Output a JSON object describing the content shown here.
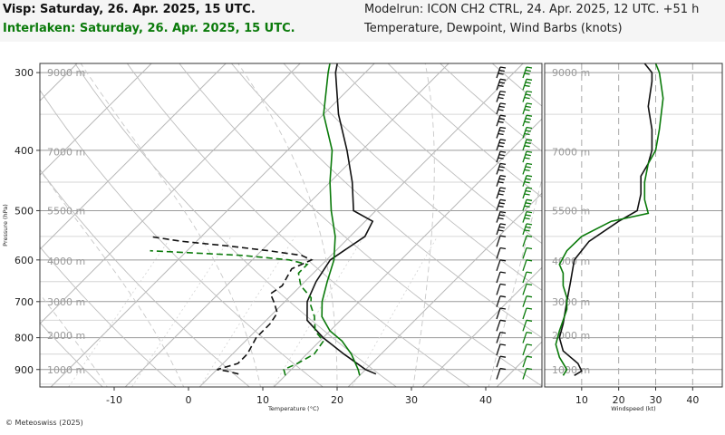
{
  "header": {
    "left_line1": "Visp: Saturday, 26. Apr. 2025, 15 UTC.",
    "left_line2": "Interlaken: Saturday, 26. Apr. 2025, 15 UTC.",
    "right_line1": "Modelrun: ICON CH2 CTRL, 24. Apr. 2025, 12 UTC. +51 h",
    "right_line2": "Temperature, Dewpoint, Wind Barbs (knots)"
  },
  "footer": {
    "copyright": "© Meteoswiss (2025)"
  },
  "colors": {
    "visp": "#111111",
    "interlaken": "#0a7a0a",
    "grid": "#bbbbbb",
    "header_bg": "#f5f5f5"
  },
  "chart_data": [
    {
      "type": "line",
      "subtype": "skew-t log-p diagram",
      "xlabel": "Temperature (°C)",
      "ylabel": "Pressure (hPa)",
      "x_ticks": [
        -10,
        0,
        10,
        20,
        30,
        40
      ],
      "y_ticks": [
        300,
        400,
        500,
        600,
        700,
        800,
        900
      ],
      "xlim": [
        -25,
        47
      ],
      "ylim": [
        960,
        290
      ],
      "y_scale": "log",
      "height_labels": [
        {
          "label": "9000 m",
          "pressure": 300
        },
        {
          "label": "7000 m",
          "pressure": 402
        },
        {
          "label": "5500 m",
          "pressure": 500
        },
        {
          "label": "4000 m",
          "pressure": 602
        },
        {
          "label": "3000 m",
          "pressure": 700
        },
        {
          "label": "2000 m",
          "pressure": 793
        },
        {
          "label": "1000 m",
          "pressure": 900
        }
      ],
      "series": [
        {
          "name": "Visp",
          "kind": "temperature",
          "color": "#111111",
          "style": "solid",
          "points": [
            [
              22,
              915
            ],
            [
              20,
              900
            ],
            [
              15,
              850
            ],
            [
              10,
              800
            ],
            [
              5.5,
              750
            ],
            [
              3,
              700
            ],
            [
              1.5,
              650
            ],
            [
              0.5,
              600
            ],
            [
              2,
              550
            ],
            [
              1,
              520
            ],
            [
              -3,
              500
            ],
            [
              -7,
              450
            ],
            [
              -12,
              400
            ],
            [
              -18,
              350
            ],
            [
              -24,
              300
            ],
            [
              -25,
              290
            ]
          ]
        },
        {
          "name": "Visp",
          "kind": "dewpoint",
          "color": "#111111",
          "style": "dashed",
          "points": [
            [
              3.5,
              915
            ],
            [
              1.5,
              905
            ],
            [
              0,
              900
            ],
            [
              2,
              880
            ],
            [
              2,
              850
            ],
            [
              1,
              800
            ],
            [
              1,
              760
            ],
            [
              0.5,
              730
            ],
            [
              -1.5,
              700
            ],
            [
              -3,
              680
            ],
            [
              -2.5,
              660
            ],
            [
              -3,
              640
            ],
            [
              -3.5,
              620
            ],
            [
              -2,
              600
            ],
            [
              -4,
              590
            ],
            [
              -9,
              580
            ],
            [
              -15,
              570
            ],
            [
              -22,
              560
            ],
            [
              -27,
              550
            ]
          ]
        },
        {
          "name": "Interlaken",
          "kind": "temperature",
          "color": "#0a7a0a",
          "style": "solid",
          "points": [
            [
              20,
              920
            ],
            [
              19,
              900
            ],
            [
              16,
              850
            ],
            [
              13,
              810
            ],
            [
              10,
              780
            ],
            [
              7,
              740
            ],
            [
              5,
              700
            ],
            [
              3,
              650
            ],
            [
              1,
              600
            ],
            [
              -2,
              550
            ],
            [
              -6,
              500
            ],
            [
              -10,
              450
            ],
            [
              -14,
              400
            ],
            [
              -20,
              350
            ],
            [
              -25,
              300
            ],
            [
              -26,
              290
            ]
          ]
        },
        {
          "name": "Interlaken",
          "kind": "dewpoint",
          "color": "#0a7a0a",
          "style": "dashed",
          "points": [
            [
              10,
              920
            ],
            [
              9,
              900
            ],
            [
              10,
              880
            ],
            [
              11,
              850
            ],
            [
              10.5,
              810
            ],
            [
              8,
              780
            ],
            [
              6,
              740
            ],
            [
              4,
              710
            ],
            [
              3,
              690
            ],
            [
              0,
              660
            ],
            [
              -2,
              630
            ],
            [
              -2,
              610
            ],
            [
              -5,
              600
            ],
            [
              -12,
              590
            ],
            [
              -25,
              580
            ]
          ]
        }
      ],
      "wind_barbs": [
        {
          "name": "Visp",
          "color": "#111111"
        },
        {
          "name": "Interlaken",
          "color": "#0a7a0a"
        }
      ]
    },
    {
      "type": "line",
      "xlabel": "Windspeed (kt)",
      "x_ticks": [
        10,
        20,
        30,
        40
      ],
      "xlim": [
        0,
        48
      ],
      "height_labels": [
        "9000 m",
        "7000 m",
        "5500 m",
        "4000 m",
        "3000 m",
        "2000 m",
        "1000 m"
      ],
      "series": [
        {
          "name": "Visp",
          "color": "#111111",
          "points": [
            [
              8,
              920
            ],
            [
              10,
              905
            ],
            [
              9,
              880
            ],
            [
              7,
              860
            ],
            [
              5,
              840
            ],
            [
              4,
              800
            ],
            [
              5,
              760
            ],
            [
              6,
              700
            ],
            [
              7,
              650
            ],
            [
              8,
              600
            ],
            [
              12,
              560
            ],
            [
              20,
              520
            ],
            [
              25,
              500
            ],
            [
              26,
              470
            ],
            [
              26,
              440
            ],
            [
              28,
              420
            ],
            [
              29,
              400
            ],
            [
              29,
              370
            ],
            [
              28,
              340
            ],
            [
              29,
              310
            ],
            [
              29,
              300
            ],
            [
              27,
              290
            ]
          ]
        },
        {
          "name": "Interlaken",
          "color": "#0a7a0a",
          "points": [
            [
              5,
              920
            ],
            [
              6,
              900
            ],
            [
              4,
              860
            ],
            [
              3,
              820
            ],
            [
              4,
              780
            ],
            [
              5,
              750
            ],
            [
              6,
              720
            ],
            [
              6,
              690
            ],
            [
              5,
              660
            ],
            [
              5,
              630
            ],
            [
              4,
              610
            ],
            [
              6,
              580
            ],
            [
              10,
              550
            ],
            [
              18,
              520
            ],
            [
              28,
              505
            ],
            [
              27,
              480
            ],
            [
              27,
              450
            ],
            [
              28,
              420
            ],
            [
              30,
              400
            ],
            [
              31,
              370
            ],
            [
              32,
              330
            ],
            [
              31,
              300
            ],
            [
              30,
              290
            ]
          ]
        }
      ]
    }
  ]
}
